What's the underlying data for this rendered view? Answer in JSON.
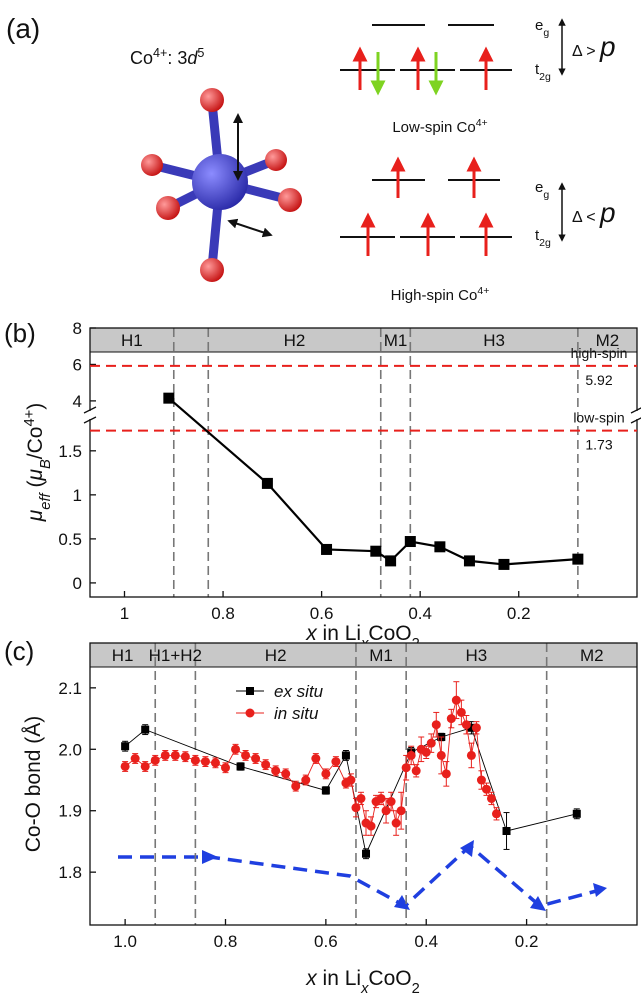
{
  "panel_a": {
    "label": "(a)",
    "ion": [
      "Co",
      "4+",
      ": 3",
      "d",
      "5"
    ],
    "low_spin": {
      "eg": [
        "e",
        "g"
      ],
      "t2g": [
        "t",
        "2g"
      ],
      "gap": [
        "Δ > ",
        "p"
      ],
      "caption": [
        "Low-spin Co",
        "4+"
      ]
    },
    "high_spin": {
      "eg": [
        "e",
        "g"
      ],
      "t2g": [
        "t",
        "2g"
      ],
      "gap": [
        "Δ < ",
        "p"
      ],
      "caption": [
        "High-spin Co",
        "4+"
      ]
    }
  },
  "chart_data": [
    {
      "type": "line",
      "panel_label": "(b)",
      "x_label": [
        "x",
        " in Li",
        "x",
        "CoO",
        "2"
      ],
      "y_label": [
        "μ",
        "eff",
        " (",
        "μ",
        "B",
        "/Co",
        "4+",
        ")"
      ],
      "xlim": [
        1.07,
        -0.04
      ],
      "xticks": [
        1,
        0.8,
        0.6,
        0.4,
        0.2
      ],
      "ylim": [
        -0.16,
        8
      ],
      "ybreak": [
        1.85,
        3.5
      ],
      "yticks": [
        0,
        0.5,
        1,
        1.5,
        4,
        6,
        8
      ],
      "phases": {
        "names": [
          "H1",
          null,
          "H2",
          "M1",
          "H3",
          "M2"
        ],
        "boundaries": [
          0.9,
          0.83,
          0.48,
          0.42,
          0.08
        ]
      },
      "reference_lines": [
        {
          "label": "high-spin",
          "value": 5.92,
          "color": "#e8201c"
        },
        {
          "label": "low-spin",
          "value": 1.73,
          "color": "#e8201c"
        }
      ],
      "color": "#000000",
      "x": [
        0.91,
        0.71,
        0.59,
        0.49,
        0.46,
        0.42,
        0.36,
        0.3,
        0.23,
        0.08
      ],
      "values": [
        4.15,
        1.13,
        0.38,
        0.36,
        0.25,
        0.47,
        0.41,
        0.25,
        0.21,
        0.27
      ]
    },
    {
      "type": "line",
      "panel_label": "(c)",
      "x_label": [
        "x",
        " in Li",
        "x",
        "CoO",
        "2"
      ],
      "y_label": "Co-O bond (Å)",
      "xlim": [
        1.07,
        -0.02
      ],
      "xticks": [
        {
          "value": 1,
          "label": "1.0"
        },
        0.8,
        0.6,
        0.4,
        0.2
      ],
      "ylim": [
        1.714,
        2.173
      ],
      "yticks": [
        1.8,
        1.9,
        {
          "value": 2,
          "label": "2.0"
        },
        2.1
      ],
      "phases": {
        "names": [
          "H1",
          "H1+H2",
          "H2",
          "M1",
          "H3",
          "M2"
        ],
        "boundaries": [
          0.94,
          0.86,
          0.54,
          0.44,
          0.16
        ]
      },
      "series": [
        {
          "name": "ex situ",
          "color": "#000000",
          "marker": "square",
          "x": [
            1.0,
            0.96,
            0.77,
            0.6,
            0.56,
            0.52,
            0.43,
            0.37,
            0.31,
            0.24,
            0.1
          ],
          "values": [
            2.005,
            2.032,
            1.972,
            1.933,
            1.99,
            1.83,
            1.995,
            2.02,
            2.035,
            1.867,
            1.895
          ],
          "errors": [
            0.008,
            0.008,
            0.006,
            0.006,
            0.008,
            0.008,
            0.008,
            0.006,
            0.01,
            0.03,
            0.008
          ]
        },
        {
          "name": "in situ",
          "color": "#e8201c",
          "marker": "circle",
          "x": [
            1.0,
            0.98,
            0.96,
            0.94,
            0.92,
            0.9,
            0.88,
            0.86,
            0.84,
            0.82,
            0.8,
            0.78,
            0.76,
            0.74,
            0.72,
            0.7,
            0.68,
            0.66,
            0.64,
            0.62,
            0.6,
            0.58,
            0.56,
            0.55,
            0.54,
            0.53,
            0.52,
            0.51,
            0.5,
            0.49,
            0.48,
            0.47,
            0.46,
            0.45,
            0.44,
            0.43,
            0.42,
            0.41,
            0.4,
            0.39,
            0.38,
            0.37,
            0.36,
            0.35,
            0.34,
            0.33,
            0.32,
            0.31,
            0.3,
            0.29,
            0.28,
            0.27,
            0.26
          ],
          "values": [
            1.972,
            1.985,
            1.972,
            1.982,
            1.99,
            1.99,
            1.988,
            1.982,
            1.98,
            1.978,
            1.97,
            2.0,
            1.99,
            1.985,
            1.975,
            1.965,
            1.96,
            1.94,
            1.95,
            1.985,
            1.96,
            1.98,
            1.945,
            1.95,
            1.905,
            1.92,
            1.88,
            1.875,
            1.915,
            1.92,
            1.9,
            1.915,
            1.88,
            1.9,
            1.97,
            1.99,
            1.965,
            2.0,
            1.995,
            2.01,
            2.04,
            1.99,
            1.96,
            2.05,
            2.08,
            2.06,
            2.04,
            1.99,
            2.035,
            1.95,
            1.935,
            1.92,
            1.895
          ],
          "errors": [
            0.008,
            0.008,
            0.008,
            0.008,
            0.008,
            0.008,
            0.008,
            0.008,
            0.008,
            0.008,
            0.008,
            0.008,
            0.008,
            0.008,
            0.008,
            0.008,
            0.008,
            0.008,
            0.008,
            0.008,
            0.008,
            0.008,
            0.008,
            0.01,
            0.015,
            0.01,
            0.02,
            0.015,
            0.01,
            0.01,
            0.02,
            0.015,
            0.02,
            0.03,
            0.02,
            0.015,
            0.01,
            0.02,
            0.01,
            0.015,
            0.02,
            0.03,
            0.02,
            0.015,
            0.03,
            0.02,
            0.015,
            0.02,
            0.01,
            0.015,
            0.01,
            0.01,
            0.01
          ]
        }
      ]
    }
  ]
}
